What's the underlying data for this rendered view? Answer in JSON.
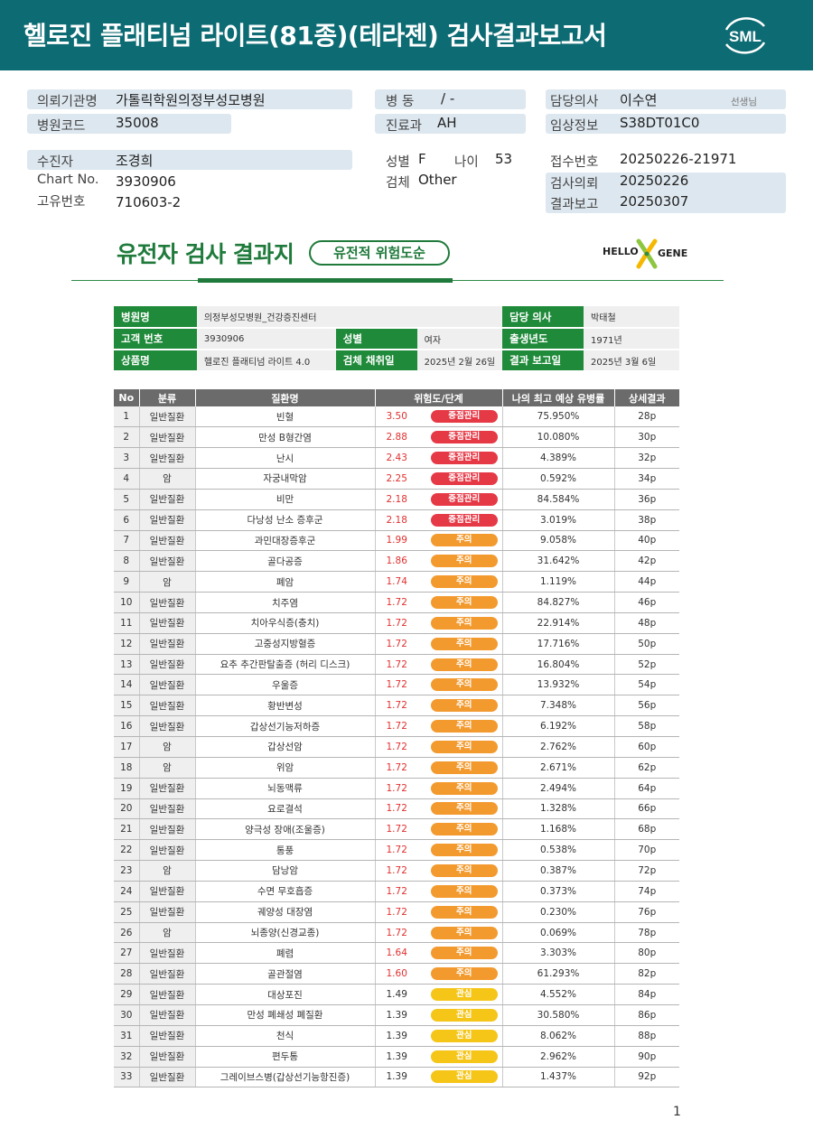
{
  "header": {
    "title": "헬로진 플래티넘 라이트(81종)(테라젠) 검사결과보고서",
    "logo_text": "SML"
  },
  "info": {
    "institution_label": "의뢰기관명",
    "institution": "가톨릭학원의정부성모병원",
    "hospital_code_label": "병원코드",
    "hospital_code": "35008",
    "ward_label": "병 동",
    "ward": "/ -",
    "department_label": "진료과",
    "department": "AH",
    "doctor_label": "담당의사",
    "doctor": "이수연",
    "doctor_suffix": "선생님",
    "clinical_label": "임상정보",
    "clinical": "S38DT01C0",
    "patient_label": "수진자",
    "patient": "조경희",
    "chart_label": "Chart No.",
    "chart": "3930906",
    "uid_label": "고유번호",
    "uid": "710603-2",
    "sex_label": "성별",
    "sex": "F",
    "age_label": "나이",
    "age": "53",
    "specimen_label": "검체",
    "specimen": "Other",
    "receipt_label": "접수번호",
    "receipt": "20250226-21971",
    "request_label": "검사의뢰",
    "request": "20250226",
    "report_label": "결과보고",
    "report": "20250307"
  },
  "gene_header": {
    "title": "유전자 검사 결과지",
    "badge": "유전적 위험도순",
    "brand_left": "HELLO",
    "brand_right": "GENE"
  },
  "info_table": {
    "hospital_label": "병원명",
    "hospital": "의정부성모병원_건강증진센터",
    "doctor_label": "담당 의사",
    "doctor": "박태철",
    "customer_label": "고객 번호",
    "customer": "3930906",
    "sex_label": "성별",
    "sex": "여자",
    "birth_label": "출생년도",
    "birth": "1971년",
    "product_label": "상품명",
    "product": "헬로진 플래티넘 라이트 4.0",
    "collect_label": "검체 채취일",
    "collect": "2025년 2월 26일",
    "report_label": "결과 보고일",
    "report": "2025년 3월 6일"
  },
  "results": {
    "headers": [
      "No",
      "분류",
      "질환명",
      "위험도/단계",
      "나의 최고 예상 유병률",
      "상세결과"
    ],
    "level_colors": {
      "중점관리": "#e63946",
      "주의": "#f39a2f",
      "관심": "#f5c518"
    },
    "rows": [
      {
        "no": "1",
        "cat": "일반질환",
        "name": "빈혈",
        "score": "3.50",
        "level": "중점관리",
        "rate": "75.950%",
        "page": "28p"
      },
      {
        "no": "2",
        "cat": "일반질환",
        "name": "만성 B형간염",
        "score": "2.88",
        "level": "중점관리",
        "rate": "10.080%",
        "page": "30p"
      },
      {
        "no": "3",
        "cat": "일반질환",
        "name": "난시",
        "score": "2.43",
        "level": "중점관리",
        "rate": "4.389%",
        "page": "32p"
      },
      {
        "no": "4",
        "cat": "암",
        "name": "자궁내막암",
        "score": "2.25",
        "level": "중점관리",
        "rate": "0.592%",
        "page": "34p"
      },
      {
        "no": "5",
        "cat": "일반질환",
        "name": "비만",
        "score": "2.18",
        "level": "중점관리",
        "rate": "84.584%",
        "page": "36p"
      },
      {
        "no": "6",
        "cat": "일반질환",
        "name": "다낭성 난소 증후군",
        "score": "2.18",
        "level": "중점관리",
        "rate": "3.019%",
        "page": "38p"
      },
      {
        "no": "7",
        "cat": "일반질환",
        "name": "과민대장증후군",
        "score": "1.99",
        "level": "주의",
        "rate": "9.058%",
        "page": "40p"
      },
      {
        "no": "8",
        "cat": "일반질환",
        "name": "골다공증",
        "score": "1.86",
        "level": "주의",
        "rate": "31.642%",
        "page": "42p"
      },
      {
        "no": "9",
        "cat": "암",
        "name": "폐암",
        "score": "1.74",
        "level": "주의",
        "rate": "1.119%",
        "page": "44p"
      },
      {
        "no": "10",
        "cat": "일반질환",
        "name": "치주염",
        "score": "1.72",
        "level": "주의",
        "rate": "84.827%",
        "page": "46p"
      },
      {
        "no": "11",
        "cat": "일반질환",
        "name": "치아우식증(충치)",
        "score": "1.72",
        "level": "주의",
        "rate": "22.914%",
        "page": "48p"
      },
      {
        "no": "12",
        "cat": "일반질환",
        "name": "고중성지방혈증",
        "score": "1.72",
        "level": "주의",
        "rate": "17.716%",
        "page": "50p"
      },
      {
        "no": "13",
        "cat": "일반질환",
        "name": "요추 추간판탈출증 (허리 디스크)",
        "score": "1.72",
        "level": "주의",
        "rate": "16.804%",
        "page": "52p"
      },
      {
        "no": "14",
        "cat": "일반질환",
        "name": "우울증",
        "score": "1.72",
        "level": "주의",
        "rate": "13.932%",
        "page": "54p"
      },
      {
        "no": "15",
        "cat": "일반질환",
        "name": "황반변성",
        "score": "1.72",
        "level": "주의",
        "rate": "7.348%",
        "page": "56p"
      },
      {
        "no": "16",
        "cat": "일반질환",
        "name": "갑상선기능저하증",
        "score": "1.72",
        "level": "주의",
        "rate": "6.192%",
        "page": "58p"
      },
      {
        "no": "17",
        "cat": "암",
        "name": "갑상선암",
        "score": "1.72",
        "level": "주의",
        "rate": "2.762%",
        "page": "60p"
      },
      {
        "no": "18",
        "cat": "암",
        "name": "위암",
        "score": "1.72",
        "level": "주의",
        "rate": "2.671%",
        "page": "62p"
      },
      {
        "no": "19",
        "cat": "일반질환",
        "name": "뇌동맥류",
        "score": "1.72",
        "level": "주의",
        "rate": "2.494%",
        "page": "64p"
      },
      {
        "no": "20",
        "cat": "일반질환",
        "name": "요로결석",
        "score": "1.72",
        "level": "주의",
        "rate": "1.328%",
        "page": "66p"
      },
      {
        "no": "21",
        "cat": "일반질환",
        "name": "양극성 장애(조울증)",
        "score": "1.72",
        "level": "주의",
        "rate": "1.168%",
        "page": "68p"
      },
      {
        "no": "22",
        "cat": "일반질환",
        "name": "통풍",
        "score": "1.72",
        "level": "주의",
        "rate": "0.538%",
        "page": "70p"
      },
      {
        "no": "23",
        "cat": "암",
        "name": "담낭암",
        "score": "1.72",
        "level": "주의",
        "rate": "0.387%",
        "page": "72p"
      },
      {
        "no": "24",
        "cat": "일반질환",
        "name": "수면 무호흡증",
        "score": "1.72",
        "level": "주의",
        "rate": "0.373%",
        "page": "74p"
      },
      {
        "no": "25",
        "cat": "일반질환",
        "name": "궤양성 대장염",
        "score": "1.72",
        "level": "주의",
        "rate": "0.230%",
        "page": "76p"
      },
      {
        "no": "26",
        "cat": "암",
        "name": "뇌종양(신경교종)",
        "score": "1.72",
        "level": "주의",
        "rate": "0.069%",
        "page": "78p"
      },
      {
        "no": "27",
        "cat": "일반질환",
        "name": "폐렴",
        "score": "1.64",
        "level": "주의",
        "rate": "3.303%",
        "page": "80p"
      },
      {
        "no": "28",
        "cat": "일반질환",
        "name": "골관절염",
        "score": "1.60",
        "level": "주의",
        "rate": "61.293%",
        "page": "82p"
      },
      {
        "no": "29",
        "cat": "일반질환",
        "name": "대상포진",
        "score": "1.49",
        "level": "관심",
        "rate": "4.552%",
        "page": "84p"
      },
      {
        "no": "30",
        "cat": "일반질환",
        "name": "만성 폐쇄성 폐질환",
        "score": "1.39",
        "level": "관심",
        "rate": "30.580%",
        "page": "86p"
      },
      {
        "no": "31",
        "cat": "일반질환",
        "name": "천식",
        "score": "1.39",
        "level": "관심",
        "rate": "8.062%",
        "page": "88p"
      },
      {
        "no": "32",
        "cat": "일반질환",
        "name": "편두통",
        "score": "1.39",
        "level": "관심",
        "rate": "2.962%",
        "page": "90p"
      },
      {
        "no": "33",
        "cat": "일반질환",
        "name": "그레이브스병(갑상선기능항진증)",
        "score": "1.39",
        "level": "관심",
        "rate": "1.437%",
        "page": "92p"
      }
    ]
  },
  "footer": {
    "page_number": "1"
  }
}
